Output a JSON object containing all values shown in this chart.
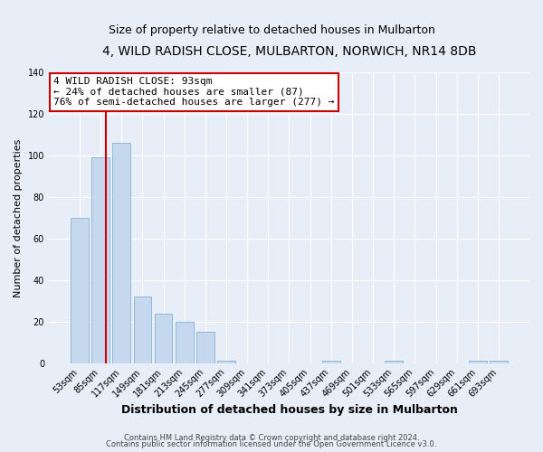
{
  "title": "4, WILD RADISH CLOSE, MULBARTON, NORWICH, NR14 8DB",
  "subtitle": "Size of property relative to detached houses in Mulbarton",
  "xlabel": "Distribution of detached houses by size in Mulbarton",
  "ylabel": "Number of detached properties",
  "bar_labels": [
    "53sqm",
    "85sqm",
    "117sqm",
    "149sqm",
    "181sqm",
    "213sqm",
    "245sqm",
    "277sqm",
    "309sqm",
    "341sqm",
    "373sqm",
    "405sqm",
    "437sqm",
    "469sqm",
    "501sqm",
    "533sqm",
    "565sqm",
    "597sqm",
    "629sqm",
    "661sqm",
    "693sqm"
  ],
  "bar_values": [
    70,
    99,
    106,
    32,
    24,
    20,
    15,
    1,
    0,
    0,
    0,
    0,
    1,
    0,
    0,
    1,
    0,
    0,
    0,
    1,
    1
  ],
  "bar_color": "#c5d8ee",
  "bar_edgecolor": "#8fb8d8",
  "vline_color": "#cc0000",
  "annotation_text": "4 WILD RADISH CLOSE: 93sqm\n← 24% of detached houses are smaller (87)\n76% of semi-detached houses are larger (277) →",
  "annotation_box_edgecolor": "#cc0000",
  "annotation_box_facecolor": "#ffffff",
  "footer_line1": "Contains HM Land Registry data © Crown copyright and database right 2024.",
  "footer_line2": "Contains public sector information licensed under the Open Government Licence v3.0.",
  "ylim": [
    0,
    140
  ],
  "background_color": "#e8eef8",
  "plot_background": "#e8eef8",
  "grid_color": "#ffffff",
  "title_fontsize": 10,
  "subtitle_fontsize": 9,
  "xlabel_fontsize": 9,
  "ylabel_fontsize": 8,
  "tick_fontsize": 7,
  "annotation_fontsize": 8,
  "footer_fontsize": 6
}
